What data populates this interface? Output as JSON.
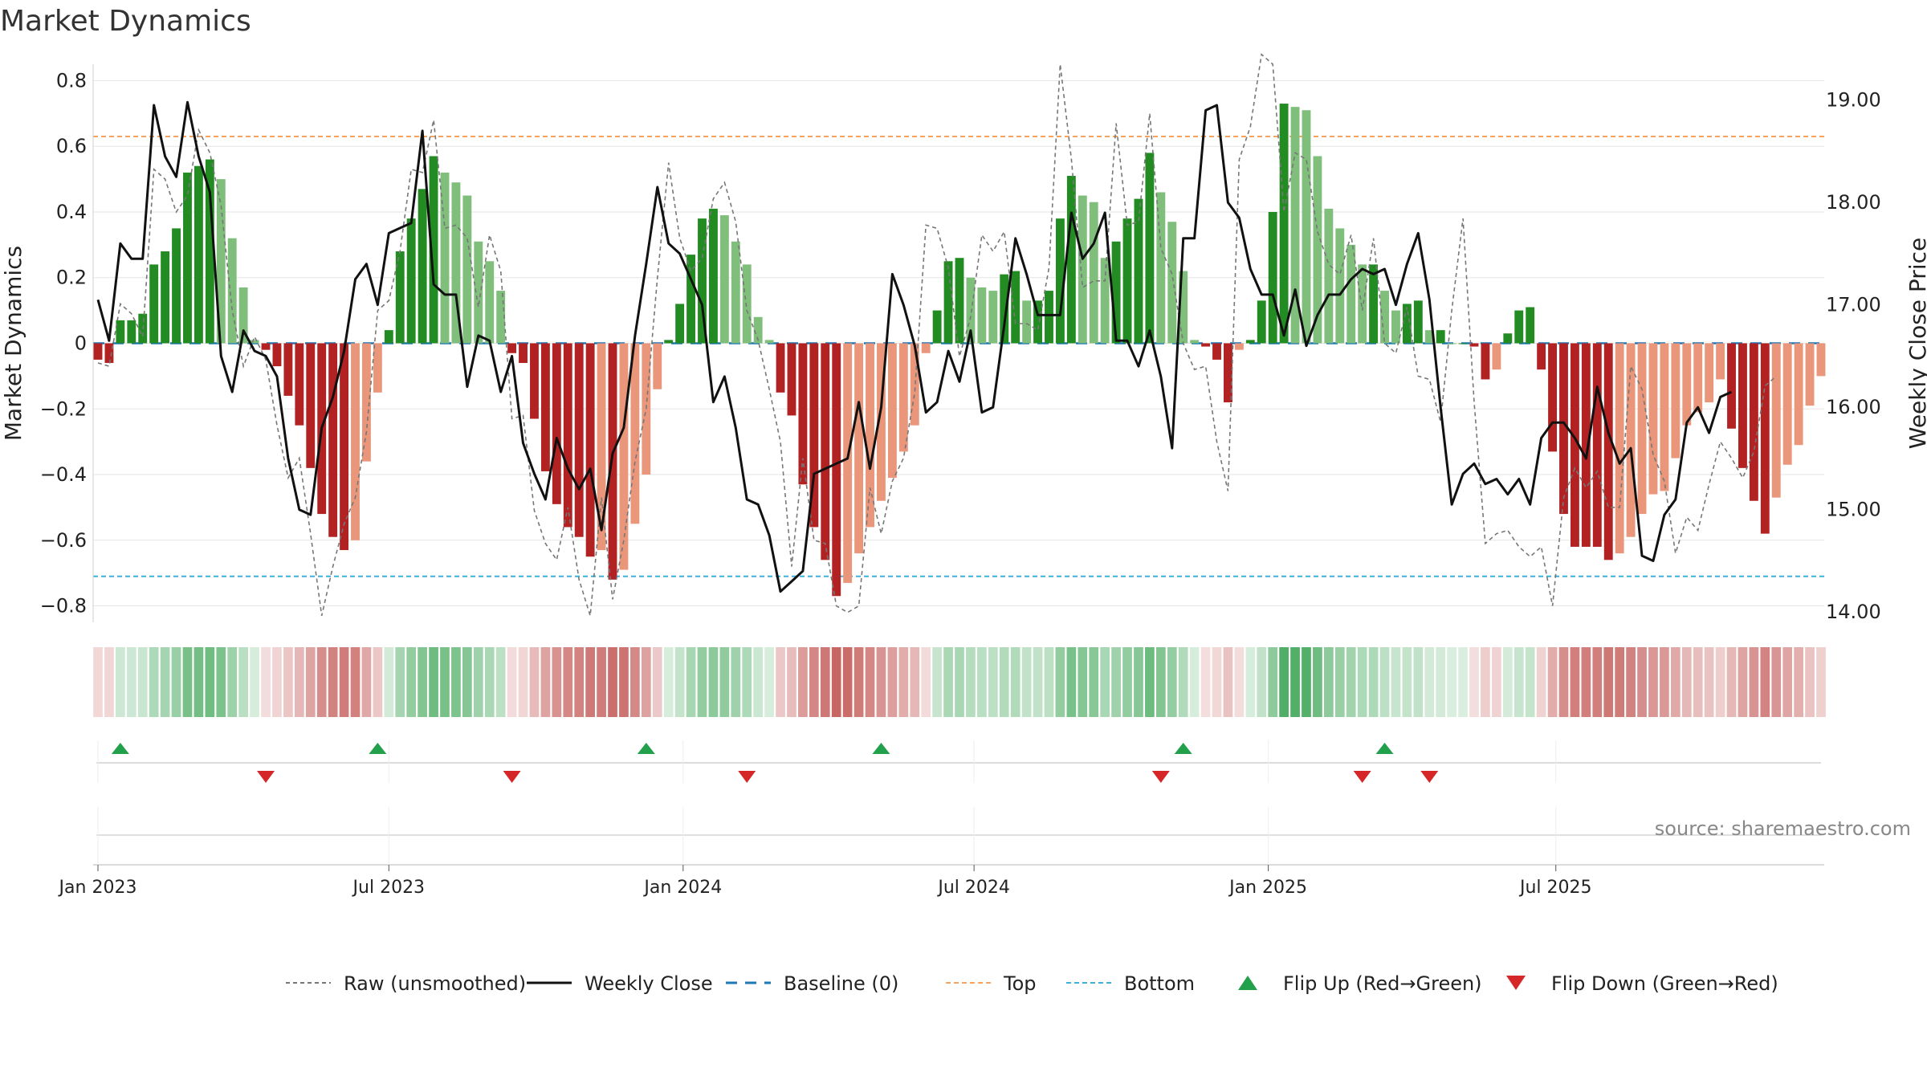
{
  "chart_data": {
    "type": "bar",
    "title": "Market Dynamics",
    "ylabel_left": "Market Dynamics",
    "ylabel_right": "Weekly Close Price",
    "ylim_left": [
      -0.85,
      0.85
    ],
    "ylim_right": [
      13.9,
      19.35
    ],
    "yticks_left": [
      -0.8,
      -0.6,
      -0.4,
      -0.2,
      0,
      0.2,
      0.4,
      0.6,
      0.8
    ],
    "yticks_left_labels": [
      "−0.8",
      "−0.6",
      "−0.4",
      "−0.2",
      "0",
      "0.2",
      "0.4",
      "0.6",
      "0.8"
    ],
    "yticks_right": [
      14.0,
      15.0,
      16.0,
      17.0,
      18.0,
      19.0
    ],
    "yticks_right_labels": [
      "14.00",
      "15.00",
      "16.00",
      "17.00",
      "18.00",
      "19.00"
    ],
    "x_start": "2022-12-26",
    "x_step_days": 7,
    "xtick_weeks": [
      1.0,
      27.0,
      53.3,
      79.3,
      105.6,
      131.3
    ],
    "xtick_labels": [
      "Jan 2023",
      "Jul 2023",
      "Jan 2024",
      "Jul 2024",
      "Jan 2025",
      "Jul 2025"
    ],
    "top_line": 0.63,
    "bottom_line": -0.71,
    "baseline": 0,
    "series": [
      {
        "name": "Market Dynamics (bars)",
        "values": [
          -0.05,
          -0.06,
          0.07,
          0.07,
          0.09,
          0.24,
          0.28,
          0.35,
          0.52,
          0.54,
          0.56,
          0.5,
          0.32,
          0.17,
          0.01,
          -0.02,
          -0.07,
          -0.16,
          -0.25,
          -0.38,
          -0.52,
          -0.59,
          -0.63,
          -0.6,
          -0.36,
          -0.15,
          0.04,
          0.28,
          0.38,
          0.47,
          0.57,
          0.52,
          0.49,
          0.45,
          0.31,
          0.25,
          0.16,
          -0.03,
          -0.06,
          -0.23,
          -0.39,
          -0.49,
          -0.56,
          -0.59,
          -0.65,
          -0.63,
          -0.72,
          -0.69,
          -0.55,
          -0.4,
          -0.14,
          0.01,
          0.12,
          0.27,
          0.38,
          0.41,
          0.39,
          0.31,
          0.24,
          0.08,
          0.01,
          -0.15,
          -0.22,
          -0.43,
          -0.56,
          -0.66,
          -0.77,
          -0.73,
          -0.64,
          -0.56,
          -0.48,
          -0.41,
          -0.33,
          -0.25,
          -0.03,
          0.1,
          0.25,
          0.26,
          0.2,
          0.17,
          0.16,
          0.21,
          0.22,
          0.13,
          0.13,
          0.16,
          0.38,
          0.51,
          0.45,
          0.43,
          0.26,
          0.31,
          0.38,
          0.44,
          0.58,
          0.46,
          0.37,
          0.22,
          0.01,
          -0.01,
          -0.05,
          -0.18,
          -0.02,
          0.01,
          0.13,
          0.4,
          0.73,
          0.72,
          0.71,
          0.57,
          0.41,
          0.35,
          0.3,
          0.24,
          0.24,
          0.16,
          0.1,
          0.12,
          0.13,
          0.04,
          0.04,
          0.0,
          0.0,
          -0.01,
          -0.11,
          -0.08,
          0.03,
          0.1,
          0.11,
          -0.08,
          -0.33,
          -0.52,
          -0.62,
          -0.62,
          -0.62,
          -0.66,
          -0.64,
          -0.59,
          -0.52,
          -0.46,
          -0.45,
          -0.35,
          -0.25,
          -0.21,
          -0.18,
          -0.11,
          -0.26,
          -0.38,
          -0.48,
          -0.58,
          -0.47,
          -0.37,
          -0.31,
          -0.19,
          -0.1
        ]
      },
      {
        "name": "Raw (unsmoothed)",
        "values": [
          -0.06,
          -0.07,
          0.12,
          0.09,
          0.02,
          0.53,
          0.5,
          0.4,
          0.45,
          0.65,
          0.58,
          0.42,
          0.1,
          -0.07,
          0.02,
          -0.05,
          -0.25,
          -0.41,
          -0.35,
          -0.58,
          -0.83,
          -0.68,
          -0.55,
          -0.47,
          -0.27,
          0.1,
          0.13,
          0.28,
          0.53,
          0.52,
          0.68,
          0.35,
          0.36,
          0.32,
          0.11,
          0.33,
          0.22,
          -0.23,
          -0.22,
          -0.51,
          -0.61,
          -0.66,
          -0.5,
          -0.72,
          -0.83,
          -0.47,
          -0.78,
          -0.6,
          -0.36,
          -0.2,
          0.2,
          0.55,
          0.32,
          0.22,
          0.26,
          0.44,
          0.49,
          0.37,
          0.1,
          0.01,
          -0.14,
          -0.3,
          -0.68,
          -0.35,
          -0.6,
          -0.61,
          -0.8,
          -0.82,
          -0.8,
          -0.44,
          -0.58,
          -0.42,
          -0.35,
          -0.15,
          0.36,
          0.35,
          0.23,
          -0.04,
          0.08,
          0.33,
          0.28,
          0.34,
          0.06,
          0.06,
          0.04,
          0.23,
          0.85,
          0.56,
          0.17,
          0.19,
          0.19,
          0.67,
          0.36,
          0.37,
          0.7,
          0.29,
          0.21,
          0.0,
          -0.08,
          -0.07,
          -0.3,
          -0.45,
          0.56,
          0.66,
          0.88,
          0.85,
          0.4,
          0.58,
          0.56,
          0.34,
          0.24,
          0.21,
          0.33,
          0.1,
          0.32,
          0.0,
          -0.03,
          0.11,
          -0.1,
          -0.11,
          -0.24,
          0.1,
          0.38,
          -0.18,
          -0.61,
          -0.58,
          -0.57,
          -0.62,
          -0.65,
          -0.62,
          -0.8,
          -0.47,
          -0.38,
          -0.44,
          -0.39,
          -0.5,
          -0.5,
          -0.07,
          -0.14,
          -0.34,
          -0.42,
          -0.64,
          -0.53,
          -0.57,
          -0.43,
          -0.3,
          -0.35,
          -0.41,
          -0.33,
          -0.13,
          -0.1
        ]
      },
      {
        "name": "Weekly Close",
        "axis": "right",
        "values": [
          17.05,
          16.65,
          17.6,
          17.45,
          17.45,
          18.95,
          18.45,
          18.25,
          18.98,
          18.45,
          18.1,
          16.5,
          16.15,
          16.75,
          16.55,
          16.5,
          16.3,
          15.5,
          15.0,
          14.95,
          15.8,
          16.1,
          16.55,
          17.25,
          17.4,
          17.0,
          17.7,
          17.75,
          17.8,
          18.7,
          17.2,
          17.1,
          17.1,
          16.2,
          16.7,
          16.65,
          16.15,
          16.5,
          15.65,
          15.35,
          15.1,
          15.7,
          15.4,
          15.2,
          15.4,
          14.8,
          15.55,
          15.8,
          16.7,
          17.4,
          18.15,
          17.6,
          17.5,
          17.25,
          17.0,
          16.05,
          16.3,
          15.8,
          15.1,
          15.05,
          14.75,
          14.2,
          14.3,
          14.4,
          15.35,
          15.4,
          15.45,
          15.5,
          16.05,
          15.4,
          16.0,
          17.3,
          17.0,
          16.6,
          15.95,
          16.05,
          16.55,
          16.25,
          16.75,
          15.95,
          16.0,
          16.8,
          17.65,
          17.3,
          16.9,
          16.9,
          16.9,
          17.9,
          17.45,
          17.6,
          17.9,
          16.65,
          16.65,
          16.4,
          16.75,
          16.3,
          15.6,
          17.65,
          17.65,
          18.9,
          18.95,
          18.0,
          17.85,
          17.35,
          17.1,
          17.1,
          16.7,
          17.15,
          16.6,
          16.9,
          17.1,
          17.1,
          17.25,
          17.35,
          17.3,
          17.35,
          17.0,
          17.4,
          17.7,
          17.05,
          16.0,
          15.05,
          15.35,
          15.45,
          15.25,
          15.3,
          15.15,
          15.3,
          15.05,
          15.7,
          15.85,
          15.85,
          15.7,
          15.5,
          16.2,
          15.75,
          15.45,
          15.6,
          14.55,
          14.5,
          14.95,
          15.1,
          15.85,
          16.0,
          15.75,
          16.1,
          16.15
        ]
      }
    ],
    "flip_up_weeks": [
      2,
      25,
      49,
      70,
      97,
      115
    ],
    "flip_down_weeks": [
      15,
      37,
      58,
      95,
      113,
      119
    ],
    "source": "source: sharemaestro.com",
    "legend": [
      {
        "key": "raw",
        "label": "Raw (unsmoothed)"
      },
      {
        "key": "close",
        "label": "Weekly Close"
      },
      {
        "key": "baseline",
        "label": "Baseline (0)"
      },
      {
        "key": "top",
        "label": "Top"
      },
      {
        "key": "bottom",
        "label": "Bottom"
      },
      {
        "key": "flipup",
        "label": "Flip Up (Red→Green)"
      },
      {
        "key": "flipdown",
        "label": "Flip Down (Green→Red)"
      }
    ],
    "colors": {
      "pos_strong": "#228b22",
      "pos_weak": "#7fbf7b",
      "neg_strong": "#b22222",
      "neg_weak": "#e9967a",
      "raw": "#777777",
      "close": "#111111",
      "baseline": "#1f77b4",
      "top": "#f4a460",
      "bottom": "#40b0d8",
      "flip_up": "#22a04b",
      "flip_down": "#d62728",
      "grid": "#e6e6e6"
    }
  }
}
